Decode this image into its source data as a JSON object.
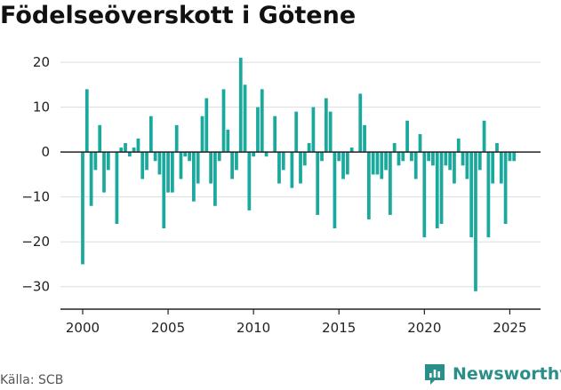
{
  "chart_data": {
    "type": "bar",
    "title": "Födelseöverskott i Götene",
    "xlabel": "",
    "ylabel": "",
    "ylim": [
      -35,
      22
    ],
    "xlim": [
      1998.7,
      2026.8
    ],
    "yticks": [
      20,
      10,
      0,
      -10,
      -20,
      -30
    ],
    "ytick_labels": [
      "20",
      "10",
      "0",
      "−10",
      "−20",
      "−30"
    ],
    "xticks": [
      2000,
      2005,
      2010,
      2015,
      2020,
      2025
    ],
    "xtick_labels": [
      "2000",
      "2005",
      "2010",
      "2015",
      "2020",
      "2025"
    ],
    "grid": "horizontal",
    "bar_color": "#1aa99c",
    "frequency": "quarterly",
    "x": [
      2000.0,
      2000.25,
      2000.5,
      2000.75,
      2001.0,
      2001.25,
      2001.5,
      2001.75,
      2002.0,
      2002.25,
      2002.5,
      2002.75,
      2003.0,
      2003.25,
      2003.5,
      2003.75,
      2004.0,
      2004.25,
      2004.5,
      2004.75,
      2005.0,
      2005.25,
      2005.5,
      2005.75,
      2006.0,
      2006.25,
      2006.5,
      2006.75,
      2007.0,
      2007.25,
      2007.5,
      2007.75,
      2008.0,
      2008.25,
      2008.5,
      2008.75,
      2009.0,
      2009.25,
      2009.5,
      2009.75,
      2010.0,
      2010.25,
      2010.5,
      2010.75,
      2011.0,
      2011.25,
      2011.5,
      2011.75,
      2012.0,
      2012.25,
      2012.5,
      2012.75,
      2013.0,
      2013.25,
      2013.5,
      2013.75,
      2014.0,
      2014.25,
      2014.5,
      2014.75,
      2015.0,
      2015.25,
      2015.5,
      2015.75,
      2016.0,
      2016.25,
      2016.5,
      2016.75,
      2017.0,
      2017.25,
      2017.5,
      2017.75,
      2018.0,
      2018.25,
      2018.5,
      2018.75,
      2019.0,
      2019.25,
      2019.5,
      2019.75,
      2020.0,
      2020.25,
      2020.5,
      2020.75,
      2021.0,
      2021.25,
      2021.5,
      2021.75,
      2022.0,
      2022.25,
      2022.5,
      2022.75,
      2023.0,
      2023.25,
      2023.5,
      2023.75,
      2024.0,
      2024.25,
      2024.5,
      2024.75,
      2025.0,
      2025.25,
      2025.5
    ],
    "values": [
      -25,
      14,
      -12,
      -4,
      6,
      -9,
      -4,
      0,
      -16,
      1,
      2,
      -1,
      1,
      3,
      -6,
      -4,
      8,
      -2,
      -5,
      -17,
      -9,
      -9,
      6,
      -6,
      -1,
      -2,
      -11,
      -7,
      8,
      12,
      -7,
      -12,
      -2,
      14,
      5,
      -6,
      -4,
      21,
      15,
      -13,
      -1,
      10,
      14,
      -1,
      0,
      8,
      -7,
      -4,
      0,
      -8,
      9,
      -7,
      -3,
      2,
      10,
      -14,
      -2,
      12,
      9,
      -17,
      -2,
      -6,
      -5,
      1,
      0,
      13,
      6,
      -15,
      -5,
      -5,
      -6,
      -4,
      -14,
      2,
      -3,
      -2,
      7,
      -2,
      -6,
      4,
      -19,
      -2,
      -3,
      -17,
      -16,
      -3,
      -4,
      -7,
      3,
      -3,
      -6,
      -19,
      -31,
      -4,
      7,
      -19,
      -7,
      2,
      -7,
      -16,
      -2,
      -2,
      0
    ]
  },
  "source": "Källa: SCB",
  "brand": {
    "name": "Newsworthy",
    "color": "#2a8f88",
    "icon": "newsworthy-chart-icon"
  }
}
